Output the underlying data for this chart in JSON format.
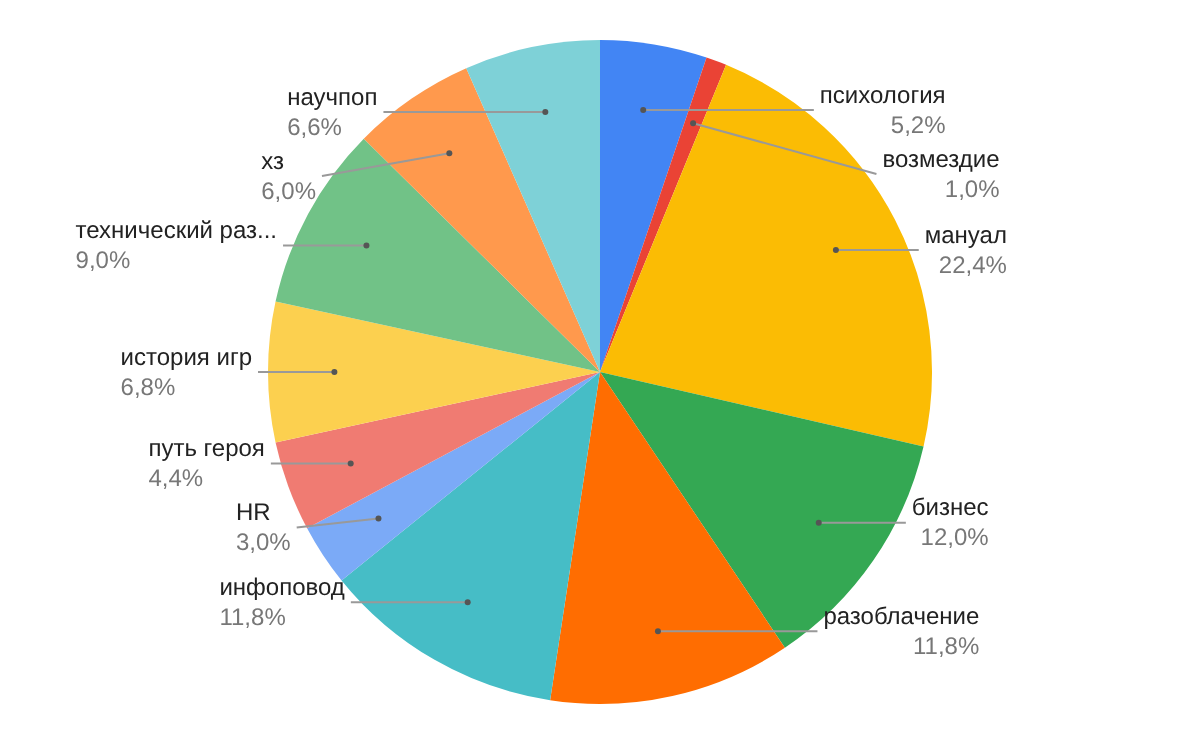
{
  "chart_data": {
    "type": "pie",
    "categories": [
      "психология",
      "возмездие",
      "мануал",
      "бизнес",
      "разоблачение",
      "инфоповод",
      "HR",
      "путь героя",
      "история игр",
      "технический раз...",
      "хз",
      "научпоп"
    ],
    "values": [
      5.2,
      1.0,
      22.4,
      12.0,
      11.8,
      11.8,
      3.0,
      4.4,
      6.8,
      9.0,
      6.0,
      6.6
    ],
    "colors": [
      "#4285f4",
      "#ea4335",
      "#fbbc04",
      "#34a853",
      "#ff6d01",
      "#46bdc6",
      "#7baaf7",
      "#f07b72",
      "#fcd04f",
      "#71c287",
      "#ff994d",
      "#7ed1d7"
    ],
    "value_labels": [
      "5,2%",
      "1,0%",
      "22,4%",
      "12,0%",
      "11,8%",
      "11,8%",
      "3,0%",
      "4,4%",
      "6,8%",
      "9,0%",
      "6,0%",
      "6,6%"
    ],
    "legend": false
  }
}
